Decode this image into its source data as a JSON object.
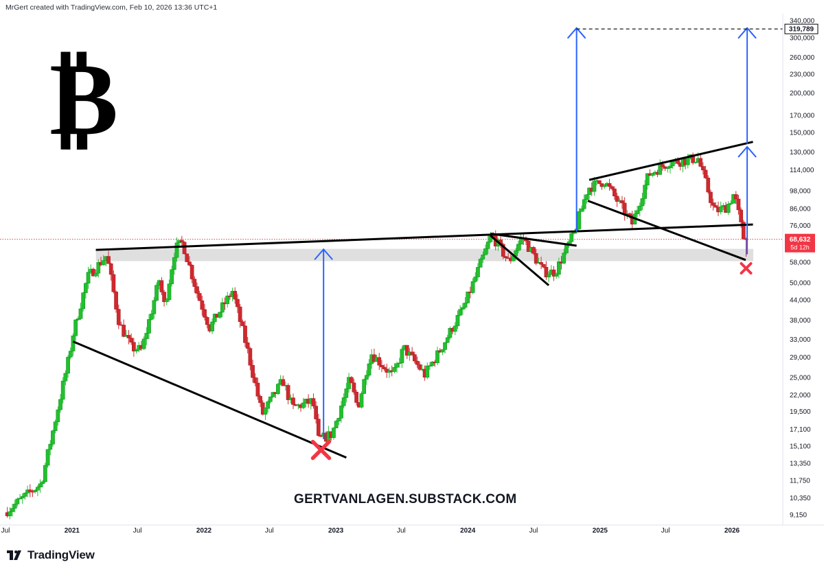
{
  "header": {
    "attribution": "MrGert created with TradingView.com, Feb 10, 2026 13:36 UTC+1"
  },
  "watermark_text": "GERTVANLAGEN.SUBSTACK.COM",
  "logo_symbol": "₿",
  "footer": {
    "brand": "TradingView",
    "logo_icon": "tradingview-logo-icon"
  },
  "colors": {
    "up": "#26a69a",
    "up_green": "#22c02e",
    "down": "#d0282e",
    "arrow": "#2962ff",
    "trendline": "#000000",
    "zone": "#dcdcdc",
    "price_line": "#d0282e",
    "cross": "#f23645"
  },
  "chart_data": {
    "type": "candlestick",
    "title": "",
    "scale": "log",
    "interval": "weekly",
    "y_ticks": [
      "340,000",
      "300,000",
      "260,000",
      "230,000",
      "200,000",
      "170,000",
      "150,000",
      "130,000",
      "114,000",
      "98,000",
      "86,000",
      "76,000",
      "58,000",
      "50,000",
      "44,000",
      "38,000",
      "33,000",
      "29,000",
      "25,000",
      "22,000",
      "19,500",
      "17,100",
      "15,100",
      "13,350",
      "11,750",
      "10,350",
      "9,150"
    ],
    "x_ticks": [
      {
        "label": "Jul",
        "year": false
      },
      {
        "label": "2021",
        "year": true
      },
      {
        "label": "Jul",
        "year": false
      },
      {
        "label": "2022",
        "year": true
      },
      {
        "label": "Jul",
        "year": false
      },
      {
        "label": "2023",
        "year": true
      },
      {
        "label": "Jul",
        "year": false
      },
      {
        "label": "2024",
        "year": true
      },
      {
        "label": "Jul",
        "year": false
      },
      {
        "label": "2025",
        "year": true
      },
      {
        "label": "Jul",
        "year": false
      },
      {
        "label": "2026",
        "year": true
      }
    ],
    "current_price_label": "68,632",
    "countdown_label": "5d 12h",
    "target_label": "319,789",
    "anchors": [
      {
        "date": "2020-07-01",
        "price": 9200
      },
      {
        "date": "2020-10-15",
        "price": 11500
      },
      {
        "date": "2020-12-31",
        "price": 29000
      },
      {
        "date": "2021-01-10",
        "price": 34000
      },
      {
        "date": "2021-02-20",
        "price": 52000
      },
      {
        "date": "2021-04-14",
        "price": 61000
      },
      {
        "date": "2021-05-19",
        "price": 37000
      },
      {
        "date": "2021-06-22",
        "price": 31000
      },
      {
        "date": "2021-07-20",
        "price": 30500
      },
      {
        "date": "2021-09-06",
        "price": 51000
      },
      {
        "date": "2021-09-21",
        "price": 42000
      },
      {
        "date": "2021-10-20",
        "price": 64000
      },
      {
        "date": "2021-11-10",
        "price": 67000
      },
      {
        "date": "2021-12-20",
        "price": 46500
      },
      {
        "date": "2022-01-24",
        "price": 36000
      },
      {
        "date": "2022-03-28",
        "price": 47000
      },
      {
        "date": "2022-05-10",
        "price": 30000
      },
      {
        "date": "2022-06-18",
        "price": 19000
      },
      {
        "date": "2022-08-14",
        "price": 24400
      },
      {
        "date": "2022-09-10",
        "price": 20000
      },
      {
        "date": "2022-11-05",
        "price": 21000
      },
      {
        "date": "2022-11-21",
        "price": 15800
      },
      {
        "date": "2022-12-28",
        "price": 16500
      },
      {
        "date": "2023-02-15",
        "price": 24500
      },
      {
        "date": "2023-03-10",
        "price": 20000
      },
      {
        "date": "2023-04-14",
        "price": 30000
      },
      {
        "date": "2023-06-15",
        "price": 25200
      },
      {
        "date": "2023-07-15",
        "price": 31000
      },
      {
        "date": "2023-09-11",
        "price": 25500
      },
      {
        "date": "2023-10-20",
        "price": 30000
      },
      {
        "date": "2023-12-31",
        "price": 42500
      },
      {
        "date": "2024-03-14",
        "price": 71000
      },
      {
        "date": "2024-05-01",
        "price": 58000
      },
      {
        "date": "2024-06-07",
        "price": 70000
      },
      {
        "date": "2024-08-05",
        "price": 54000
      },
      {
        "date": "2024-09-06",
        "price": 54000
      },
      {
        "date": "2024-10-29",
        "price": 72000
      },
      {
        "date": "2024-12-05",
        "price": 100000
      },
      {
        "date": "2025-01-20",
        "price": 105000
      },
      {
        "date": "2025-04-07",
        "price": 77000
      },
      {
        "date": "2025-05-22",
        "price": 110000
      },
      {
        "date": "2025-07-14",
        "price": 120000
      },
      {
        "date": "2025-10-06",
        "price": 124000
      },
      {
        "date": "2025-11-21",
        "price": 84000
      },
      {
        "date": "2025-12-25",
        "price": 87000
      },
      {
        "date": "2026-01-14",
        "price": 96000
      },
      {
        "date": "2026-02-10",
        "price": 68632
      }
    ],
    "zone": {
      "from_price": 58500,
      "to_price": 64000,
      "start_date": "2021-03-08",
      "end_date": "2026-03-01"
    },
    "lines": [
      {
        "name": "lower-support-2021-2022",
        "from": {
          "date": "2021-01-04",
          "price": 32500
        },
        "to": {
          "date": "2023-01-30",
          "price": 13900
        }
      },
      {
        "name": "horizontal-resistance",
        "from": {
          "date": "2021-03-08",
          "price": 63500
        },
        "to": {
          "date": "2026-02-28",
          "price": 76500
        }
      },
      {
        "name": "wedge-upper-2024",
        "from": {
          "date": "2024-03-04",
          "price": 71500
        },
        "to": {
          "date": "2024-10-28",
          "price": 65500
        }
      },
      {
        "name": "wedge-lower-2024",
        "from": {
          "date": "2024-03-04",
          "price": 70500
        },
        "to": {
          "date": "2024-08-12",
          "price": 49000
        }
      },
      {
        "name": "channel-upper-2025",
        "from": {
          "date": "2024-12-02",
          "price": 106000
        },
        "to": {
          "date": "2026-02-28",
          "price": 140000
        }
      },
      {
        "name": "channel-lower-2025",
        "from": {
          "date": "2024-11-28",
          "price": 91000
        },
        "to": {
          "date": "2026-02-08",
          "price": 59000
        }
      }
    ],
    "arrows": [
      {
        "date": "2022-11-28",
        "from_price": 15900,
        "to_price": 63800
      },
      {
        "date": "2024-10-28",
        "from_price": 72500,
        "to_price": 322000
      },
      {
        "date": "2026-02-12",
        "from_price": 61500,
        "to_price": 135000
      },
      {
        "date": "2026-02-12",
        "from_price": 138000,
        "to_price": 322000
      }
    ],
    "crosses": [
      {
        "date": "2022-11-21",
        "price": 14700,
        "size": "large"
      },
      {
        "date": "2026-02-09",
        "price": 55500,
        "size": "small"
      }
    ],
    "target_line": {
      "from_date": "2024-10-28",
      "to_date": "2026-04-15",
      "price": 319789
    }
  }
}
